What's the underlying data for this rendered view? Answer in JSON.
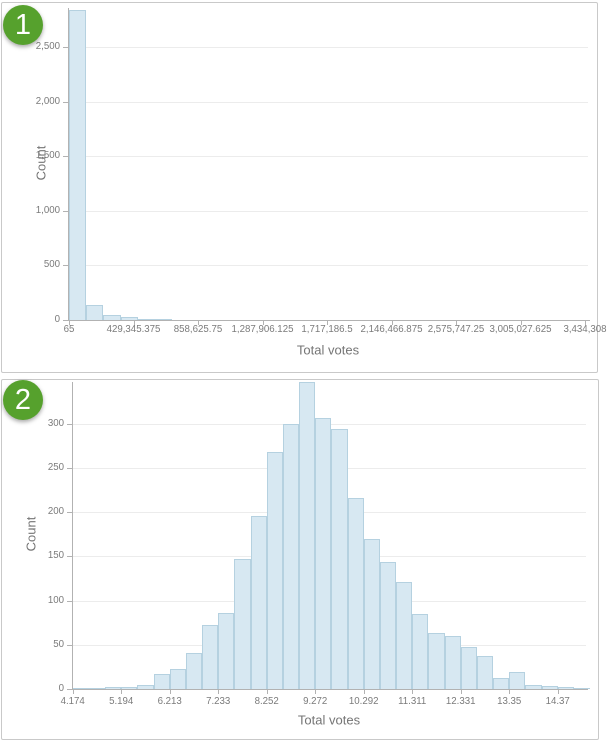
{
  "badges": [
    {
      "label": "1"
    },
    {
      "label": "2"
    }
  ],
  "colors": {
    "badge_green": "#56a12d",
    "bar_fill": "#d7e8f2",
    "bar_border": "#b5d1e0",
    "gridline": "#ececec",
    "axis_line": "#b2b2b2",
    "label_text": "#7b7b7b",
    "panel_border": "#c9c9c9"
  },
  "chart_data": [
    {
      "type": "bar",
      "subtype": "histogram",
      "title": "",
      "xlabel": "Total votes",
      "ylabel": "Count",
      "grid": "horizontal",
      "bin_start": 65,
      "bin_width": 114474.77,
      "counts": [
        2840,
        135,
        48,
        25,
        9,
        6,
        4,
        3,
        2,
        2,
        0,
        0,
        0,
        0,
        0,
        0,
        0,
        0,
        0,
        0,
        0,
        0,
        0,
        0,
        0,
        0,
        0,
        0,
        0,
        0
      ],
      "x_tick_labels": [
        "65",
        "429,345.375",
        "858,625.75",
        "1,287,906.125",
        "1,717,186.5",
        "2,146,466.875",
        "2,575,747.25",
        "3,005,027.625",
        "3,434,308"
      ],
      "y_ticks": [
        0,
        500,
        1000,
        1500,
        2000,
        2500
      ],
      "y_tick_labels": [
        "0",
        "500",
        "1,000",
        "1,500",
        "2,000",
        "2,500"
      ],
      "ylim": [
        0,
        2860
      ],
      "legend": "none"
    },
    {
      "type": "bar",
      "subtype": "histogram",
      "title": "",
      "xlabel": "Total votes",
      "ylabel": "Count",
      "grid": "horizontal",
      "bin_start": 4.174,
      "bin_width": 0.34,
      "counts": [
        1,
        1,
        2,
        2,
        5,
        17,
        23,
        41,
        72,
        86,
        147,
        196,
        268,
        300,
        347,
        306,
        294,
        216,
        170,
        144,
        121,
        85,
        63,
        60,
        47,
        37,
        13,
        19,
        4,
        3,
        2,
        1
      ],
      "x_tick_labels": [
        "4.174",
        "5.194",
        "6.213",
        "7.233",
        "8.252",
        "9.272",
        "10.292",
        "11.311",
        "12.331",
        "13.35",
        "14.37"
      ],
      "y_ticks": [
        0,
        50,
        100,
        150,
        200,
        250,
        300
      ],
      "y_tick_labels": [
        "0",
        "50",
        "100",
        "150",
        "200",
        "250",
        "300"
      ],
      "ylim": [
        0,
        350
      ],
      "legend": "none"
    }
  ]
}
